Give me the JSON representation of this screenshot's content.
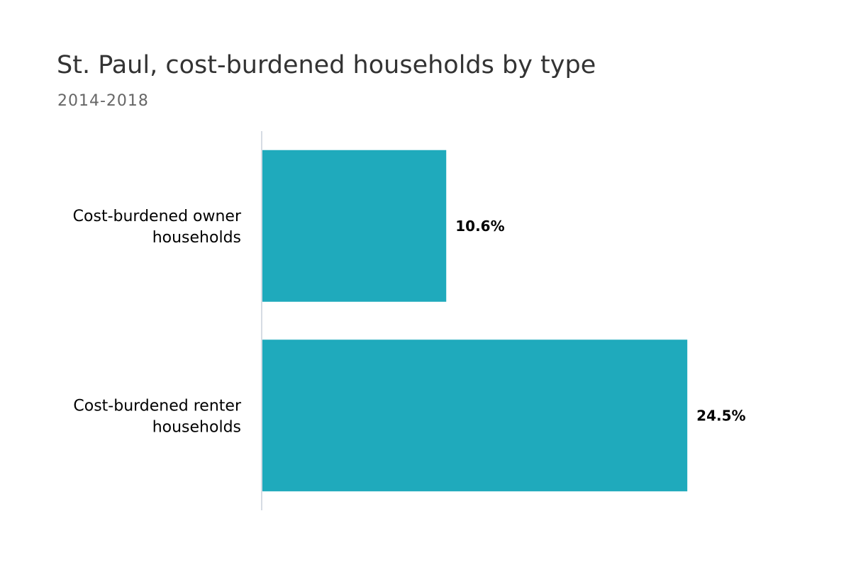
{
  "chart_data": {
    "type": "bar",
    "orientation": "horizontal",
    "title": "St. Paul, cost-burdened households by type",
    "subtitle": "2014-2018",
    "categories": [
      [
        "Cost-burdened owner",
        "households"
      ],
      [
        "Cost-burdened renter",
        "households"
      ]
    ],
    "values": [
      10.6,
      24.5
    ],
    "data_labels": [
      "10.6%",
      "24.5%"
    ],
    "xlim": [
      0,
      28.5
    ],
    "grid": false,
    "legend": "none",
    "colors": {
      "bar": "#1faabc",
      "axis": "#c8d0dc"
    }
  }
}
